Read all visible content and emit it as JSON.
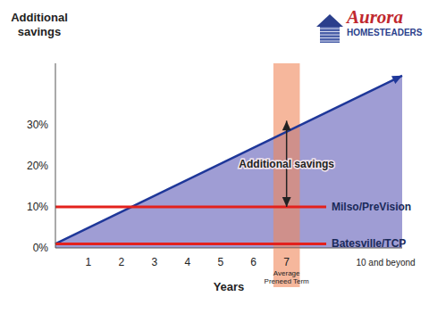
{
  "chart_data": {
    "type": "line",
    "y_label": "Additional savings",
    "x_label": "Years",
    "logo": {
      "name": "Aurora",
      "subtitle": "HOMESTEADERS"
    },
    "xlim": [
      0,
      10.5
    ],
    "xticks": [
      1,
      2,
      3,
      4,
      5,
      6,
      7,
      {
        "value": 10,
        "label": "10 and beyond"
      }
    ],
    "ylim": [
      0,
      45
    ],
    "yticks": [
      {
        "value": 0,
        "label": "0%"
      },
      {
        "value": 10,
        "label": "10%"
      },
      {
        "value": 20,
        "label": "20%"
      },
      {
        "value": 30,
        "label": "30%"
      }
    ],
    "grid": false,
    "series": [
      {
        "type": "area",
        "color": "#9a98d2",
        "x": [
          0,
          10.5
        ],
        "values": [
          1,
          42
        ],
        "line_style": "arrow"
      },
      {
        "name": "Milso/PreVision",
        "color": "#e3211c",
        "x": [
          0,
          8.2
        ],
        "values": [
          10,
          10
        ]
      },
      {
        "name": "Batesville/TCP",
        "color": "#e3211c",
        "x": [
          0,
          8.2
        ],
        "values": [
          1,
          1
        ]
      }
    ],
    "bands": [
      {
        "x": [
          6.6,
          7.4
        ],
        "label": "Average Preneed Term",
        "color": "#f0875a"
      }
    ],
    "annotations": [
      {
        "text": "Additional savings",
        "x": 7,
        "y": [
          10,
          31
        ]
      }
    ]
  }
}
